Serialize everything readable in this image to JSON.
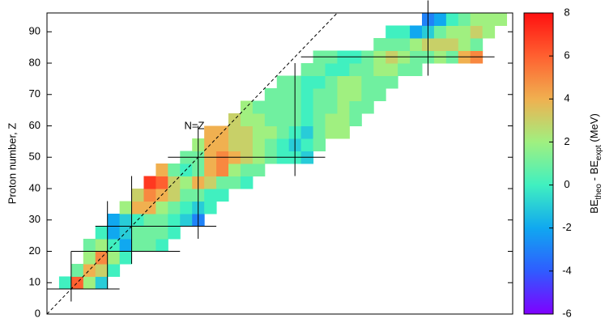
{
  "chart_data": {
    "type": "heatmap",
    "ylabel": "Proton number, Z",
    "annotation": "N=Z",
    "xlim": [
      0,
      154
    ],
    "ylim": [
      0,
      96
    ],
    "yticks": [
      0,
      10,
      20,
      30,
      40,
      50,
      60,
      70,
      80,
      90
    ],
    "colorbar_label": [
      "BE",
      "theo",
      " - BE",
      "expt",
      " (MeV)"
    ],
    "clim": [
      -6,
      8
    ],
    "cticks": [
      -6,
      -4,
      -2,
      0,
      2,
      4,
      6,
      8
    ],
    "colors": [
      "#7f00ff",
      "#2f5cff",
      "#10a8f0",
      "#40f0c0",
      "#a0f080",
      "#f0b050",
      "#ff6030",
      "#ff1010"
    ],
    "magic_numbers": [
      8,
      20,
      28,
      50,
      82,
      126
    ],
    "rows": [
      {
        "z": 8,
        "n": 4,
        "values": [
          0,
          6,
          2,
          -1
        ]
      },
      {
        "z": 12,
        "n": 8,
        "values": [
          1,
          4,
          3,
          0
        ]
      },
      {
        "z": 16,
        "n": 12,
        "values": [
          2,
          5,
          2,
          0
        ]
      },
      {
        "z": 20,
        "n": 12,
        "values": [
          1,
          2,
          0,
          -2,
          1,
          1,
          0
        ]
      },
      {
        "z": 24,
        "n": 16,
        "values": [
          0,
          -2,
          -1,
          1,
          1,
          1,
          0
        ]
      },
      {
        "z": 28,
        "n": 20,
        "values": [
          -2,
          -1,
          0,
          1,
          1,
          0,
          -1,
          -3
        ]
      },
      {
        "z": 32,
        "n": 24,
        "values": [
          2,
          4,
          4,
          2,
          1,
          0,
          -1,
          0
        ]
      },
      {
        "z": 36,
        "n": 28,
        "values": [
          3,
          5,
          4,
          3,
          1,
          1,
          0,
          0
        ]
      },
      {
        "z": 40,
        "n": 32,
        "values": [
          7,
          6,
          3,
          2,
          4,
          3,
          1,
          1,
          0
        ]
      },
      {
        "z": 44,
        "n": 36,
        "values": [
          4,
          1,
          0,
          1,
          4,
          5,
          2,
          1,
          1
        ]
      },
      {
        "z": 48,
        "n": 44,
        "values": [
          1,
          1,
          4,
          5,
          4,
          3,
          2,
          1,
          0,
          0,
          -1
        ]
      },
      {
        "z": 52,
        "n": 48,
        "values": [
          2,
          4,
          4,
          3,
          3,
          2,
          1,
          0,
          -1,
          0,
          1
        ]
      },
      {
        "z": 56,
        "n": 52,
        "values": [
          4,
          4,
          3,
          3,
          2,
          2,
          1,
          0,
          -1,
          1,
          2,
          2
        ]
      },
      {
        "z": 60,
        "n": 60,
        "values": [
          3,
          2,
          2,
          1,
          1,
          1,
          0,
          1,
          2,
          2,
          1
        ]
      },
      {
        "z": 64,
        "n": 64,
        "values": [
          2,
          1,
          1,
          1,
          1,
          0,
          1,
          1,
          2,
          1,
          1
        ]
      },
      {
        "z": 68,
        "n": 72,
        "values": [
          1,
          1,
          1,
          0,
          1,
          1,
          2,
          2,
          1,
          1
        ]
      },
      {
        "z": 72,
        "n": 76,
        "values": [
          1,
          1,
          0,
          0,
          1,
          2,
          2,
          1,
          1,
          1
        ]
      },
      {
        "z": 76,
        "n": 84,
        "values": [
          1,
          1,
          0,
          0,
          1,
          1,
          2,
          2,
          1,
          1
        ]
      },
      {
        "z": 80,
        "n": 88,
        "values": [
          1,
          1,
          0,
          0,
          1,
          2,
          3,
          2,
          1,
          1,
          2,
          1,
          4,
          5
        ]
      },
      {
        "z": 84,
        "n": 108,
        "values": [
          1,
          1,
          1,
          2,
          3,
          3,
          3,
          2,
          1
        ]
      },
      {
        "z": 88,
        "n": 112,
        "values": [
          0,
          0,
          -2,
          -1,
          1,
          2,
          2,
          3,
          2
        ]
      },
      {
        "z": 92,
        "n": 124,
        "values": [
          -3,
          -2,
          0,
          1,
          2,
          2,
          2
        ]
      }
    ]
  }
}
